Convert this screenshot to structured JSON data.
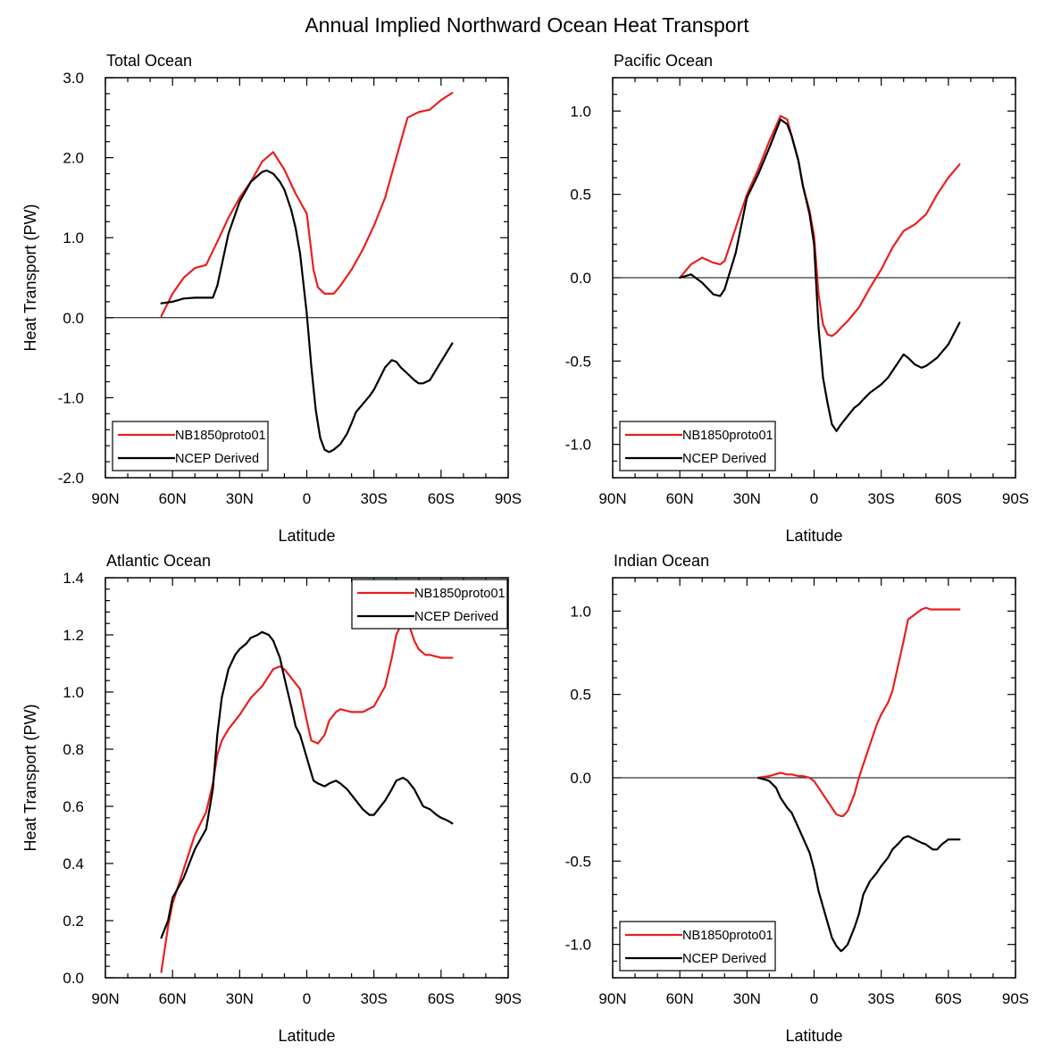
{
  "figure_title": "Annual Implied Northward Ocean Heat Transport",
  "colors": {
    "model": "#e8201e",
    "obs": "#000000",
    "axis": "#000000"
  },
  "chart_data": [
    {
      "type": "line",
      "title": "Total Ocean",
      "xlabel": "Latitude",
      "ylabel": "Heat Transport (PW)",
      "xlim": [
        -90,
        90
      ],
      "ylim": [
        -2.0,
        3.0
      ],
      "xticks": [
        -90,
        -60,
        -30,
        0,
        30,
        60,
        90
      ],
      "xtick_labels": [
        "90N",
        "60N",
        "30N",
        "0",
        "30S",
        "60S",
        "90S"
      ],
      "yticks": [
        -2.0,
        -1.0,
        0.0,
        1.0,
        2.0,
        3.0
      ],
      "ytick_labels": [
        "-2.0",
        "-1.0",
        "0.0",
        "1.0",
        "2.0",
        "3.0"
      ],
      "legend_position": "bottom-left",
      "series": [
        {
          "name": "NB1850proto01",
          "color": "#e8201e",
          "x": [
            -65,
            -60,
            -55,
            -50,
            -45,
            -40,
            -35,
            -30,
            -25,
            -20,
            -15,
            -10,
            -5,
            0,
            3,
            5,
            8,
            12,
            15,
            20,
            25,
            30,
            35,
            40,
            45,
            50,
            55,
            60,
            65
          ],
          "y": [
            0.02,
            0.3,
            0.5,
            0.62,
            0.66,
            0.95,
            1.25,
            1.5,
            1.7,
            1.95,
            2.07,
            1.85,
            1.55,
            1.3,
            0.6,
            0.38,
            0.3,
            0.3,
            0.4,
            0.6,
            0.85,
            1.15,
            1.5,
            2.0,
            2.5,
            2.57,
            2.6,
            2.72,
            2.81
          ]
        },
        {
          "name": "NCEP Derived",
          "color": "#000000",
          "x": [
            -65,
            -60,
            -55,
            -50,
            -45,
            -42,
            -40,
            -35,
            -30,
            -25,
            -20,
            -18,
            -15,
            -12,
            -10,
            -7,
            -5,
            -3,
            0,
            2,
            4,
            6,
            8,
            10,
            12,
            15,
            18,
            20,
            22,
            25,
            28,
            30,
            35,
            38,
            40,
            42,
            45,
            48,
            50,
            52,
            55,
            60,
            65
          ],
          "y": [
            0.18,
            0.2,
            0.24,
            0.25,
            0.25,
            0.25,
            0.4,
            1.05,
            1.45,
            1.7,
            1.82,
            1.84,
            1.8,
            1.7,
            1.6,
            1.35,
            1.12,
            0.8,
            0.05,
            -0.6,
            -1.15,
            -1.5,
            -1.65,
            -1.68,
            -1.65,
            -1.58,
            -1.45,
            -1.32,
            -1.18,
            -1.08,
            -0.98,
            -0.9,
            -0.62,
            -0.53,
            -0.55,
            -0.62,
            -0.7,
            -0.78,
            -0.82,
            -0.82,
            -0.78,
            -0.55,
            -0.32
          ]
        }
      ]
    },
    {
      "type": "line",
      "title": "Pacific Ocean",
      "xlabel": "Latitude",
      "ylabel": "",
      "xlim": [
        -90,
        90
      ],
      "ylim": [
        -1.2,
        1.2
      ],
      "xticks": [
        -90,
        -60,
        -30,
        0,
        30,
        60,
        90
      ],
      "xtick_labels": [
        "90N",
        "60N",
        "30N",
        "0",
        "30S",
        "60S",
        "90S"
      ],
      "yticks": [
        -1.0,
        -0.5,
        0.0,
        0.5,
        1.0
      ],
      "ytick_labels": [
        "-1.0",
        "-0.5",
        "0.0",
        "0.5",
        "1.0"
      ],
      "legend_position": "bottom-left",
      "series": [
        {
          "name": "NB1850proto01",
          "color": "#e8201e",
          "x": [
            -60,
            -55,
            -50,
            -45,
            -42,
            -40,
            -35,
            -30,
            -25,
            -20,
            -15,
            -12,
            -10,
            -7,
            -5,
            -2,
            0,
            2,
            4,
            6,
            8,
            10,
            12,
            15,
            20,
            25,
            30,
            35,
            40,
            45,
            50,
            55,
            60,
            65
          ],
          "y": [
            0.0,
            0.08,
            0.12,
            0.09,
            0.08,
            0.1,
            0.3,
            0.5,
            0.65,
            0.82,
            0.97,
            0.95,
            0.85,
            0.7,
            0.55,
            0.4,
            0.25,
            -0.1,
            -0.28,
            -0.34,
            -0.35,
            -0.33,
            -0.3,
            -0.26,
            -0.18,
            -0.06,
            0.05,
            0.18,
            0.28,
            0.32,
            0.38,
            0.5,
            0.6,
            0.68
          ]
        },
        {
          "name": "NCEP Derived",
          "color": "#000000",
          "x": [
            -60,
            -55,
            -50,
            -45,
            -42,
            -40,
            -35,
            -30,
            -25,
            -20,
            -15,
            -12,
            -10,
            -7,
            -5,
            -2,
            0,
            2,
            4,
            6,
            8,
            10,
            12,
            15,
            18,
            20,
            22,
            25,
            28,
            30,
            33,
            35,
            38,
            40,
            42,
            45,
            48,
            50,
            55,
            60,
            65
          ],
          "y": [
            0.0,
            0.02,
            -0.03,
            -0.1,
            -0.11,
            -0.07,
            0.15,
            0.48,
            0.62,
            0.78,
            0.95,
            0.92,
            0.85,
            0.7,
            0.55,
            0.38,
            0.2,
            -0.3,
            -0.6,
            -0.75,
            -0.88,
            -0.92,
            -0.88,
            -0.83,
            -0.78,
            -0.76,
            -0.73,
            -0.69,
            -0.66,
            -0.64,
            -0.6,
            -0.56,
            -0.5,
            -0.46,
            -0.48,
            -0.52,
            -0.54,
            -0.53,
            -0.48,
            -0.4,
            -0.27
          ]
        }
      ]
    },
    {
      "type": "line",
      "title": "Atlantic Ocean",
      "xlabel": "Latitude",
      "ylabel": "Heat Transport (PW)",
      "xlim": [
        -90,
        90
      ],
      "ylim": [
        0.0,
        1.4
      ],
      "xticks": [
        -90,
        -60,
        -30,
        0,
        30,
        60,
        90
      ],
      "xtick_labels": [
        "90N",
        "60N",
        "30N",
        "0",
        "30S",
        "60S",
        "90S"
      ],
      "yticks": [
        0.0,
        0.2,
        0.4,
        0.6,
        0.8,
        1.0,
        1.2,
        1.4
      ],
      "ytick_labels": [
        "0.0",
        "0.2",
        "0.4",
        "0.6",
        "0.8",
        "1.0",
        "1.2",
        "1.4"
      ],
      "legend_position": "top-right",
      "series": [
        {
          "name": "NB1850proto01",
          "color": "#e8201e",
          "x": [
            -65,
            -62,
            -60,
            -55,
            -50,
            -45,
            -42,
            -40,
            -38,
            -35,
            -30,
            -25,
            -20,
            -15,
            -12,
            -10,
            -5,
            -3,
            0,
            2,
            5,
            8,
            10,
            13,
            15,
            20,
            25,
            30,
            35,
            38,
            40,
            43,
            45,
            48,
            50,
            53,
            55,
            60,
            65
          ],
          "y": [
            0.02,
            0.18,
            0.26,
            0.38,
            0.5,
            0.58,
            0.68,
            0.78,
            0.83,
            0.87,
            0.92,
            0.98,
            1.02,
            1.08,
            1.09,
            1.08,
            1.03,
            1.01,
            0.9,
            0.83,
            0.82,
            0.85,
            0.9,
            0.93,
            0.94,
            0.93,
            0.93,
            0.95,
            1.02,
            1.12,
            1.2,
            1.25,
            1.25,
            1.18,
            1.15,
            1.13,
            1.13,
            1.12,
            1.12
          ]
        },
        {
          "name": "NCEP Derived",
          "color": "#000000",
          "x": [
            -65,
            -62,
            -60,
            -55,
            -50,
            -45,
            -42,
            -40,
            -38,
            -35,
            -32,
            -30,
            -27,
            -25,
            -22,
            -20,
            -17,
            -15,
            -12,
            -10,
            -7,
            -5,
            -3,
            0,
            3,
            5,
            8,
            10,
            13,
            15,
            18,
            20,
            22,
            25,
            28,
            30,
            35,
            38,
            40,
            43,
            45,
            48,
            50,
            52,
            55,
            58,
            60,
            63,
            65
          ],
          "y": [
            0.14,
            0.2,
            0.28,
            0.35,
            0.45,
            0.52,
            0.66,
            0.85,
            0.98,
            1.08,
            1.13,
            1.15,
            1.17,
            1.19,
            1.2,
            1.21,
            1.2,
            1.18,
            1.12,
            1.05,
            0.95,
            0.88,
            0.85,
            0.77,
            0.69,
            0.68,
            0.67,
            0.68,
            0.69,
            0.68,
            0.66,
            0.64,
            0.62,
            0.59,
            0.57,
            0.57,
            0.62,
            0.66,
            0.69,
            0.7,
            0.69,
            0.66,
            0.63,
            0.6,
            0.59,
            0.57,
            0.56,
            0.55,
            0.54
          ]
        }
      ]
    },
    {
      "type": "line",
      "title": "Indian Ocean",
      "xlabel": "Latitude",
      "ylabel": "",
      "xlim": [
        -90,
        90
      ],
      "ylim": [
        -1.2,
        1.2
      ],
      "xticks": [
        -90,
        -60,
        -30,
        0,
        30,
        60,
        90
      ],
      "xtick_labels": [
        "90N",
        "60N",
        "30N",
        "0",
        "30S",
        "60S",
        "90S"
      ],
      "yticks": [
        -1.0,
        -0.5,
        0.0,
        0.5,
        1.0
      ],
      "ytick_labels": [
        "-1.0",
        "-0.5",
        "0.0",
        "0.5",
        "1.0"
      ],
      "legend_position": "bottom-left",
      "series": [
        {
          "name": "NB1850proto01",
          "color": "#e8201e",
          "x": [
            -25,
            -20,
            -15,
            -12,
            -10,
            -7,
            -5,
            -2,
            0,
            2,
            5,
            8,
            10,
            12,
            13,
            15,
            18,
            20,
            22,
            25,
            28,
            30,
            33,
            35,
            38,
            40,
            42,
            45,
            48,
            50,
            52,
            55,
            60,
            65
          ],
          "y": [
            0.0,
            0.01,
            0.03,
            0.02,
            0.02,
            0.01,
            0.01,
            0.0,
            -0.02,
            -0.06,
            -0.12,
            -0.18,
            -0.22,
            -0.23,
            -0.23,
            -0.2,
            -0.1,
            0.0,
            0.08,
            0.2,
            0.32,
            0.38,
            0.45,
            0.52,
            0.7,
            0.82,
            0.95,
            0.98,
            1.01,
            1.02,
            1.01,
            1.01,
            1.01,
            1.01
          ]
        },
        {
          "name": "NCEP Derived",
          "color": "#000000",
          "x": [
            -25,
            -22,
            -20,
            -17,
            -15,
            -12,
            -10,
            -7,
            -5,
            -2,
            0,
            2,
            5,
            8,
            10,
            12,
            13,
            15,
            18,
            20,
            22,
            25,
            28,
            30,
            33,
            35,
            38,
            40,
            42,
            45,
            48,
            50,
            53,
            55,
            57,
            60,
            65
          ],
          "y": [
            0.0,
            -0.01,
            -0.02,
            -0.06,
            -0.12,
            -0.18,
            -0.21,
            -0.3,
            -0.36,
            -0.45,
            -0.55,
            -0.68,
            -0.82,
            -0.96,
            -1.01,
            -1.04,
            -1.03,
            -1.0,
            -0.9,
            -0.82,
            -0.7,
            -0.62,
            -0.57,
            -0.53,
            -0.48,
            -0.43,
            -0.39,
            -0.36,
            -0.35,
            -0.37,
            -0.39,
            -0.4,
            -0.43,
            -0.43,
            -0.4,
            -0.37,
            -0.37
          ]
        }
      ]
    }
  ]
}
